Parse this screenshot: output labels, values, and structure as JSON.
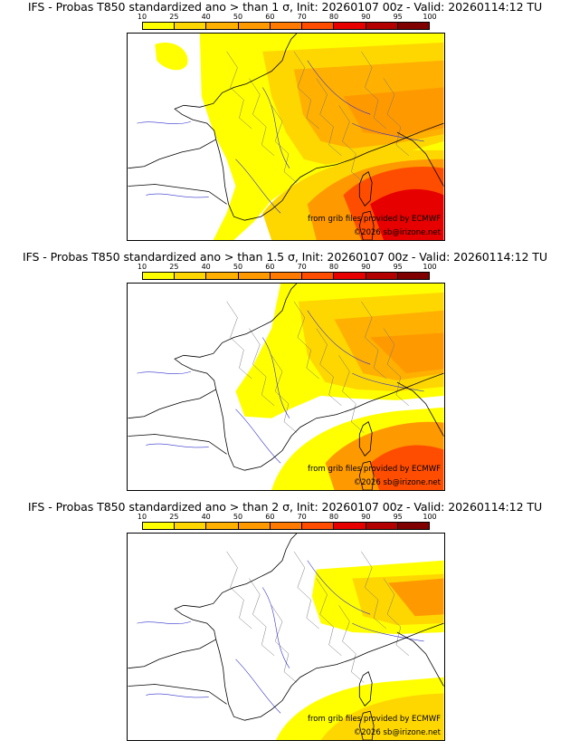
{
  "panels": [
    {
      "title": "IFS - Probas T850  standardized ano > than 1 σ, Init: 20260107 00z - Valid: 20260114:12 TU"
    },
    {
      "title": "IFS - Probas T850  standardized ano > than 1.5 σ, Init: 20260107 00z - Valid: 20260114:12 TU"
    },
    {
      "title": "IFS - Probas T850  standardized ano > than 2 σ, Init: 20260107 00z - Valid: 20260114:12 TU"
    }
  ],
  "colorbar": {
    "ticks": [
      "10",
      "25",
      "40",
      "50",
      "60",
      "70",
      "80",
      "90",
      "95",
      "100"
    ],
    "colors": [
      "#ffff00",
      "#ffd700",
      "#ffb000",
      "#ff9900",
      "#ff7a00",
      "#ff4d00",
      "#e60000",
      "#b30000",
      "#800000"
    ]
  },
  "credits": {
    "grib": "from grib files provided by ECMWF",
    "site": "©2026 sb@irizone.net"
  }
}
